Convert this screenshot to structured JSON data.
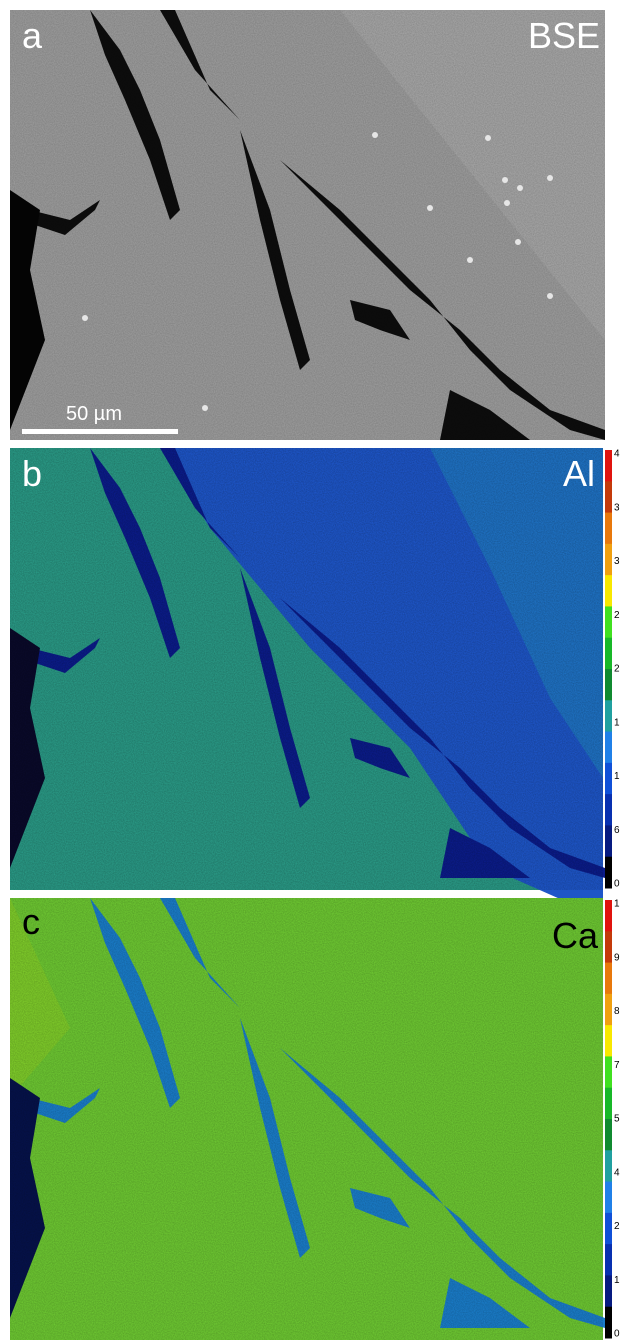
{
  "panels": [
    {
      "label": "a",
      "element": "BSE"
    },
    {
      "label": "b",
      "element": "Al",
      "colorbar_labels": [
        "4",
        "3",
        "3",
        "2",
        "2",
        "1",
        "1",
        "6",
        "0"
      ]
    },
    {
      "label": "c",
      "element": "Ca",
      "colorbar_labels": [
        "1",
        "9",
        "8",
        "7",
        "5",
        "4",
        "2",
        "1",
        "0"
      ]
    }
  ],
  "scale_bar": "50 µm"
}
